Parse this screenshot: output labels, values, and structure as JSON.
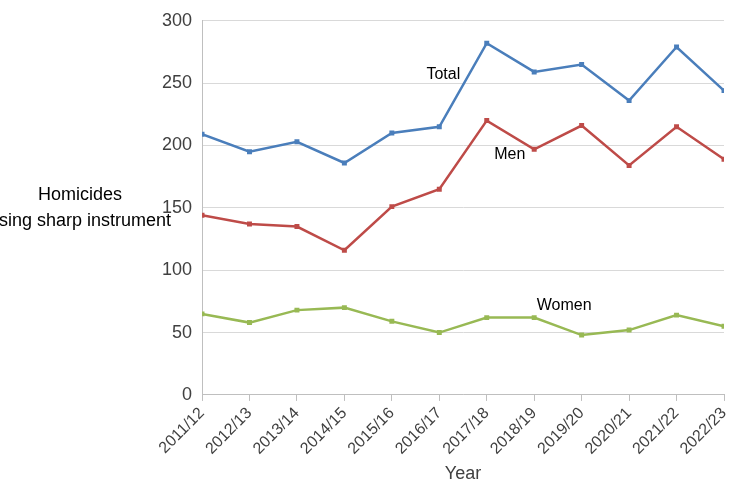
{
  "chart_data": {
    "type": "line",
    "y_label": "Homicides using sharp instrument",
    "x_label": "Year",
    "categories": [
      "2011/12",
      "2012/13",
      "2013/14",
      "2014/15",
      "2015/16",
      "2016/17",
      "2017/18",
      "2018/19",
      "2019/20",
      "2020/21",
      "2021/22",
      "2022/23"
    ],
    "series": [
      {
        "name": "Total",
        "color": "#4a7ebb",
        "marker": "square",
        "line_style": "solid",
        "values": [
          209,
          195,
          203,
          186,
          210,
          215,
          282,
          259,
          265,
          236,
          279,
          244
        ]
      },
      {
        "name": "Men",
        "color": "#be4b48",
        "marker": "square",
        "line_style": "solid",
        "values": [
          144,
          137,
          135,
          116,
          151,
          165,
          220,
          197,
          216,
          184,
          215,
          189
        ]
      },
      {
        "name": "Women",
        "color": "#98b954",
        "marker": "square",
        "line_style": "solid",
        "values": [
          65,
          58,
          68,
          70,
          59,
          50,
          62,
          62,
          48,
          52,
          64,
          55
        ]
      }
    ],
    "ylim": [
      0,
      300
    ],
    "yticks": [
      0,
      50,
      100,
      150,
      200,
      250,
      300
    ],
    "grid": true
  }
}
